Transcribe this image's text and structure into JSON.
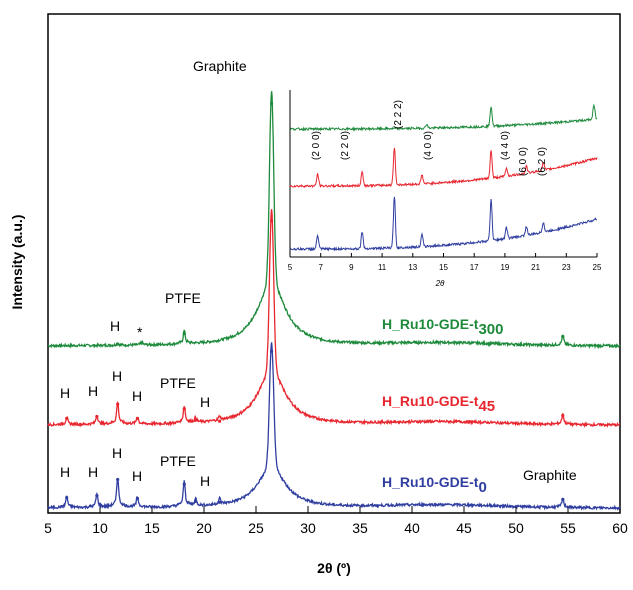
{
  "chart_data": [
    {
      "type": "line",
      "xlabel": "2θ (º)",
      "ylabel": "Intensity (a.u.)",
      "xlim": [
        5,
        60
      ],
      "xticks": [
        "5",
        "10",
        "15",
        "20",
        "25",
        "30",
        "35",
        "40",
        "45",
        "50",
        "55",
        "60"
      ],
      "series": [
        {
          "name": "H_Ru10-GDE-t300",
          "label_main": "H_Ru10-GDE-t",
          "label_sub": "300",
          "color": "#1e8a3c",
          "baseline": 0.1,
          "peaks": [
            {
              "x": 11.7,
              "y": 0.02
            },
            {
              "x": 14.0,
              "y": 0.03
            },
            {
              "x": 18.1,
              "y": 0.13
            },
            {
              "x": 26.5,
              "y": 2.55
            },
            {
              "x": 54.5,
              "y": 0.1
            }
          ]
        },
        {
          "name": "H_Ru10-GDE-t45",
          "label_main": "H_Ru10-GDE-t",
          "label_sub": "45",
          "color": "#e8262f",
          "baseline": 0.05,
          "peaks": [
            {
              "x": 6.8,
              "y": 0.07
            },
            {
              "x": 9.7,
              "y": 0.09
            },
            {
              "x": 11.7,
              "y": 0.22
            },
            {
              "x": 13.6,
              "y": 0.07
            },
            {
              "x": 18.1,
              "y": 0.17
            },
            {
              "x": 19.2,
              "y": 0.05
            },
            {
              "x": 21.5,
              "y": 0.04
            },
            {
              "x": 26.5,
              "y": 2.15
            },
            {
              "x": 54.5,
              "y": 0.1
            }
          ]
        },
        {
          "name": "H_Ru10-GDE-t0",
          "label_main": "H_Ru10-GDE-t",
          "label_sub": "0",
          "color": "#2f3ea0",
          "baseline": 0.0,
          "peaks": [
            {
              "x": 6.8,
              "y": 0.11
            },
            {
              "x": 9.7,
              "y": 0.13
            },
            {
              "x": 11.7,
              "y": 0.3
            },
            {
              "x": 13.6,
              "y": 0.1
            },
            {
              "x": 18.1,
              "y": 0.25
            },
            {
              "x": 19.2,
              "y": 0.07
            },
            {
              "x": 21.5,
              "y": 0.06
            },
            {
              "x": 26.5,
              "y": 1.65
            },
            {
              "x": 54.5,
              "y": 0.09
            }
          ]
        }
      ],
      "annotations": [
        "Graphite",
        "PTFE",
        "H",
        "*"
      ],
      "annotation_labels": {
        "graphite": "Graphite",
        "ptfe": "PTFE",
        "h": "H",
        "star": "*"
      }
    },
    {
      "type": "line",
      "name": "inset",
      "xlabel": "2θ",
      "xlim": [
        5,
        25
      ],
      "xticks": [
        "5",
        "7",
        "9",
        "11",
        "13",
        "15",
        "17",
        "19",
        "21",
        "23",
        "25"
      ],
      "miller_labels": {
        "200": "(2 0 0)",
        "220": "(2 2 0)",
        "222": "(2 2 2)",
        "400": "(4 0 0)",
        "440": "(4 4 0)",
        "600": "(6 0 0)",
        "620": "(6 2 0)"
      }
    }
  ]
}
